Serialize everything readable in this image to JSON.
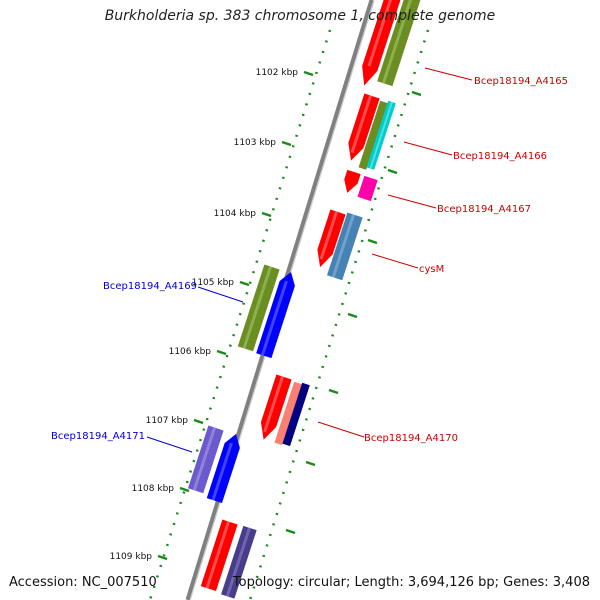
{
  "title": "Burkholderia sp. 383 chromosome 1, complete genome",
  "accession": "Accession: NC_007510",
  "topology": "Topology: circular; Length: 3,694,126 bp; Genes: 3,408",
  "colors": {
    "backbone": "#7f7f7f",
    "tick": "#1a8a1a",
    "forward_label": "#cc0000",
    "reverse_label": "#0000cc",
    "red": "#ff0000",
    "olive": "#6b8e23",
    "cyan": "#00cccc",
    "magenta": "#ff00aa",
    "steelblue": "#4682b4",
    "blue": "#0000ff",
    "salmon": "#fa8072",
    "navy": "#000080",
    "slateblue": "#6a5acd",
    "darkslateblue": "#483d8b"
  },
  "ticks": [
    "1102 kbp",
    "1103 kbp",
    "1104 kbp",
    "1105 kbp",
    "1106 kbp",
    "1107 kbp",
    "1108 kbp",
    "1109 kbp"
  ],
  "labels": {
    "forward": [
      "Bcep18194_A4165",
      "Bcep18194_A4166",
      "Bcep18194_A4167",
      "cysM",
      "Bcep18194_A4170"
    ],
    "reverse": [
      "Bcep18194_A4169",
      "Bcep18194_A4171"
    ]
  }
}
